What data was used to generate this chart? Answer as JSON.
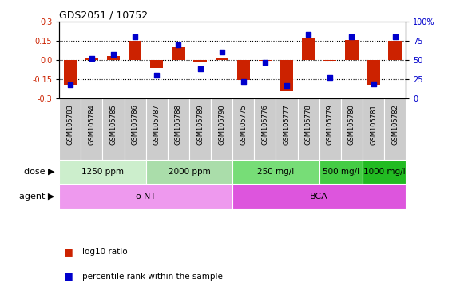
{
  "title": "GDS2051 / 10752",
  "samples": [
    "GSM105783",
    "GSM105784",
    "GSM105785",
    "GSM105786",
    "GSM105787",
    "GSM105788",
    "GSM105789",
    "GSM105790",
    "GSM105775",
    "GSM105776",
    "GSM105777",
    "GSM105778",
    "GSM105779",
    "GSM105780",
    "GSM105781",
    "GSM105782"
  ],
  "log10_ratio": [
    -0.195,
    0.01,
    0.03,
    0.148,
    -0.065,
    0.1,
    -0.02,
    0.01,
    -0.16,
    -0.01,
    -0.245,
    0.175,
    -0.005,
    0.155,
    -0.195,
    0.148
  ],
  "percentile_rank": [
    18,
    52,
    57,
    80,
    30,
    70,
    38,
    60,
    22,
    47,
    17,
    83,
    27,
    80,
    19,
    80
  ],
  "ylim": [
    -0.3,
    0.3
  ],
  "yticks_left": [
    -0.3,
    -0.15,
    0.0,
    0.15,
    0.3
  ],
  "yticks_right": [
    0,
    25,
    50,
    75,
    100
  ],
  "hlines": [
    -0.15,
    0.0,
    0.15
  ],
  "bar_color": "#cc2200",
  "dot_color": "#0000cc",
  "dose_groups": [
    {
      "label": "1250 ppm",
      "start": 0,
      "end": 4,
      "color": "#cceecc"
    },
    {
      "label": "2000 ppm",
      "start": 4,
      "end": 8,
      "color": "#aaddaa"
    },
    {
      "label": "250 mg/l",
      "start": 8,
      "end": 12,
      "color": "#77dd77"
    },
    {
      "label": "500 mg/l",
      "start": 12,
      "end": 14,
      "color": "#44cc44"
    },
    {
      "label": "1000 mg/l",
      "start": 14,
      "end": 16,
      "color": "#22bb22"
    }
  ],
  "agent_groups": [
    {
      "label": "o-NT",
      "start": 0,
      "end": 8,
      "color": "#ee99ee"
    },
    {
      "label": "BCA",
      "start": 8,
      "end": 16,
      "color": "#dd55dd"
    }
  ],
  "dose_label": "dose",
  "agent_label": "agent",
  "legend_red": "log10 ratio",
  "legend_blue": "percentile rank within the sample",
  "bar_color_legend": "#cc2200",
  "dot_color_legend": "#0000cc",
  "sample_box_color": "#cccccc",
  "left_label_color": "#555555"
}
